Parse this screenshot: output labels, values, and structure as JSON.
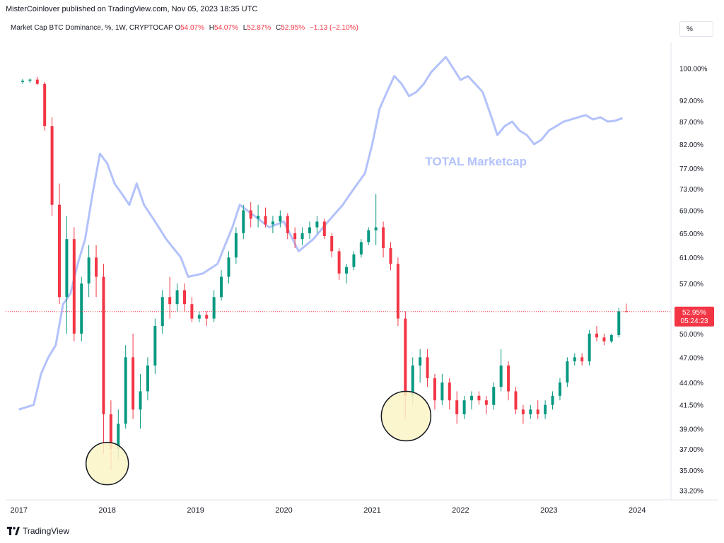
{
  "header": {
    "publisher_line": "MisterCoinlover published on TradingView.com, Nov 05, 2023 18:35 UTC",
    "symbol_title": "Market Cap BTC Dominance, %, 1W, CRYPTOCAP",
    "open_label": "O",
    "open_value": "54.07%",
    "high_label": "H",
    "high_value": "54.07%",
    "low_label": "L",
    "low_value": "52.87%",
    "close_label": "C",
    "close_value": "52.95%",
    "change_value": "−1.13 (−2.10%)",
    "scale_button": "%"
  },
  "footer": {
    "brand": "TradingView"
  },
  "colors": {
    "up": "#089981",
    "down": "#f23645",
    "overlay": "#b3c2fb",
    "annotation_fill": "#fcf5c7",
    "price_line": "#f23645"
  },
  "chart_data": {
    "type": "candlestick",
    "title": "Market Cap BTC Dominance, %, 1W, CRYPTOCAP",
    "interval": "1W",
    "x_tick_labels": [
      "2017",
      "2018",
      "2019",
      "2020",
      "2021",
      "2022",
      "2023",
      "2024"
    ],
    "y_tick_labels": [
      "100.00%",
      "92.00%",
      "87.00%",
      "82.00%",
      "77.00%",
      "73.00%",
      "69.00%",
      "65.00%",
      "61.00%",
      "57.00%",
      "50.00%",
      "47.00%",
      "44.00%",
      "41.50%",
      "39.00%",
      "37.00%",
      "35.00%",
      "33.20%"
    ],
    "ylim": [
      32.5,
      107
    ],
    "y_scale": "log",
    "grid": false,
    "last_price_label": "52.95%",
    "countdown_label": "05:24:23",
    "overlay_series": {
      "label": "TOTAL Marketcap",
      "color": "#b3c2fb",
      "points": [
        [
          "2017-01",
          41.0
        ],
        [
          "2017-03",
          41.5
        ],
        [
          "2017-04",
          45.0
        ],
        [
          "2017-05",
          47.0
        ],
        [
          "2017-06",
          48.5
        ],
        [
          "2017-07",
          54.0
        ],
        [
          "2017-08",
          55.5
        ],
        [
          "2017-09",
          60.0
        ],
        [
          "2017-10",
          64.0
        ],
        [
          "2017-11",
          72.0
        ],
        [
          "2017-12",
          80.0
        ],
        [
          "2018-01",
          78.0
        ],
        [
          "2018-02",
          74.0
        ],
        [
          "2018-03",
          72.0
        ],
        [
          "2018-04",
          70.0
        ],
        [
          "2018-05",
          74.0
        ],
        [
          "2018-06",
          70.0
        ],
        [
          "2018-07",
          68.0
        ],
        [
          "2018-08",
          66.0
        ],
        [
          "2018-09",
          64.0
        ],
        [
          "2018-11",
          61.0
        ],
        [
          "2018-12",
          58.0
        ],
        [
          "2019-02",
          58.5
        ],
        [
          "2019-04",
          60.0
        ],
        [
          "2019-05",
          63.0
        ],
        [
          "2019-06",
          66.0
        ],
        [
          "2019-07",
          70.0
        ],
        [
          "2019-09",
          68.0
        ],
        [
          "2019-11",
          66.0
        ],
        [
          "2020-01",
          67.0
        ],
        [
          "2020-03",
          62.0
        ],
        [
          "2020-05",
          64.0
        ],
        [
          "2020-07",
          67.0
        ],
        [
          "2020-09",
          70.0
        ],
        [
          "2020-10",
          72.0
        ],
        [
          "2020-12",
          76.0
        ],
        [
          "2021-01",
          82.0
        ],
        [
          "2021-02",
          90.0
        ],
        [
          "2021-03",
          94.0
        ],
        [
          "2021-04",
          98.0
        ],
        [
          "2021-05",
          96.0
        ],
        [
          "2021-06",
          93.0
        ],
        [
          "2021-07",
          94.0
        ],
        [
          "2021-08",
          96.0
        ],
        [
          "2021-09",
          99.0
        ],
        [
          "2021-10",
          101.0
        ],
        [
          "2021-11",
          103.0
        ],
        [
          "2021-12",
          100.0
        ],
        [
          "2022-01",
          97.0
        ],
        [
          "2022-02",
          98.0
        ],
        [
          "2022-03",
          96.0
        ],
        [
          "2022-04",
          94.0
        ],
        [
          "2022-05",
          89.0
        ],
        [
          "2022-06",
          84.0
        ],
        [
          "2022-07",
          86.0
        ],
        [
          "2022-08",
          87.0
        ],
        [
          "2022-09",
          85.0
        ],
        [
          "2022-10",
          84.0
        ],
        [
          "2022-11",
          82.0
        ],
        [
          "2022-12",
          83.0
        ],
        [
          "2023-01",
          85.0
        ],
        [
          "2023-02",
          86.0
        ],
        [
          "2023-03",
          87.0
        ],
        [
          "2023-04",
          87.5
        ],
        [
          "2023-05",
          88.0
        ],
        [
          "2023-06",
          88.5
        ],
        [
          "2023-07",
          87.5
        ],
        [
          "2023-08",
          88.0
        ],
        [
          "2023-09",
          87.0
        ],
        [
          "2023-10",
          87.2
        ],
        [
          "2023-11",
          87.8
        ]
      ]
    },
    "candles": [
      [
        "2017-01",
        96.5,
        97.2,
        96.0,
        96.8
      ],
      [
        "2017-02",
        96.8,
        97.4,
        96.3,
        97.1
      ],
      [
        "2017-03",
        97.1,
        97.8,
        95.8,
        96.0
      ],
      [
        "2017-04",
        96.0,
        96.5,
        85.0,
        86.0
      ],
      [
        "2017-05",
        86.0,
        88.0,
        68.0,
        70.0
      ],
      [
        "2017-06",
        70.0,
        74.0,
        54.0,
        55.0
      ],
      [
        "2017-07",
        55.0,
        68.0,
        50.0,
        64.0
      ],
      [
        "2017-08",
        64.0,
        66.0,
        49.0,
        50.0
      ],
      [
        "2017-09",
        50.0,
        58.0,
        49.0,
        57.0
      ],
      [
        "2017-10",
        57.0,
        63.0,
        55.0,
        61.0
      ],
      [
        "2017-11",
        61.0,
        63.0,
        55.0,
        58.0
      ],
      [
        "2017-12",
        58.0,
        60.0,
        36.5,
        40.5
      ],
      [
        "2018-01",
        40.5,
        42.0,
        35.0,
        37.0
      ],
      [
        "2018-02",
        37.0,
        41.0,
        36.0,
        39.5
      ],
      [
        "2018-03",
        39.5,
        48.5,
        39.0,
        47.0
      ],
      [
        "2018-04",
        47.0,
        50.0,
        40.0,
        41.0
      ],
      [
        "2018-05",
        41.0,
        45.0,
        39.0,
        43.0
      ],
      [
        "2018-06",
        43.0,
        47.0,
        42.0,
        46.0
      ],
      [
        "2018-07",
        46.0,
        52.0,
        45.0,
        51.0
      ],
      [
        "2018-08",
        51.0,
        56.0,
        50.0,
        55.0
      ],
      [
        "2018-09",
        55.0,
        58.0,
        52.0,
        54.0
      ],
      [
        "2018-10",
        54.0,
        57.0,
        53.0,
        56.0
      ],
      [
        "2018-11",
        56.0,
        57.0,
        53.0,
        54.0
      ],
      [
        "2018-12",
        54.0,
        55.0,
        51.5,
        52.0
      ],
      [
        "2019-01",
        52.0,
        53.0,
        51.5,
        52.5
      ],
      [
        "2019-02",
        52.5,
        53.0,
        51.0,
        52.0
      ],
      [
        "2019-03",
        52.0,
        56.0,
        51.5,
        55.0
      ],
      [
        "2019-04",
        55.0,
        59.0,
        54.5,
        58.0
      ],
      [
        "2019-05",
        58.0,
        62.0,
        57.0,
        61.0
      ],
      [
        "2019-06",
        61.0,
        66.0,
        60.0,
        65.0
      ],
      [
        "2019-07",
        65.0,
        70.0,
        64.0,
        69.0
      ],
      [
        "2019-08",
        69.0,
        70.5,
        66.0,
        67.5
      ],
      [
        "2019-09",
        67.5,
        70.0,
        66.0,
        68.0
      ],
      [
        "2019-10",
        68.0,
        69.5,
        66.0,
        66.5
      ],
      [
        "2019-11",
        66.5,
        68.0,
        65.0,
        67.0
      ],
      [
        "2019-12",
        67.0,
        69.0,
        66.0,
        68.0
      ],
      [
        "2020-01",
        68.0,
        68.5,
        64.0,
        65.0
      ],
      [
        "2020-02",
        65.0,
        66.0,
        62.5,
        64.0
      ],
      [
        "2020-03",
        64.0,
        66.0,
        63.0,
        65.0
      ],
      [
        "2020-04",
        65.0,
        67.0,
        64.0,
        66.0
      ],
      [
        "2020-05",
        66.0,
        68.0,
        65.0,
        67.0
      ],
      [
        "2020-06",
        67.0,
        67.5,
        64.0,
        64.5
      ],
      [
        "2020-07",
        64.5,
        65.0,
        61.0,
        62.0
      ],
      [
        "2020-08",
        62.0,
        62.5,
        57.5,
        58.5
      ],
      [
        "2020-09",
        58.5,
        60.0,
        57.0,
        59.5
      ],
      [
        "2020-10",
        59.5,
        62.0,
        59.0,
        61.5
      ],
      [
        "2020-11",
        61.5,
        64.0,
        61.0,
        63.5
      ],
      [
        "2020-12",
        63.5,
        66.0,
        63.0,
        65.5
      ],
      [
        "2021-01",
        65.5,
        72.0,
        63.0,
        66.0
      ],
      [
        "2021-02",
        66.0,
        67.0,
        61.0,
        62.5
      ],
      [
        "2021-03",
        62.5,
        63.5,
        59.0,
        60.0
      ],
      [
        "2021-04",
        60.0,
        61.0,
        51.0,
        52.0
      ],
      [
        "2021-05",
        52.0,
        53.0,
        40.0,
        42.5
      ],
      [
        "2021-06",
        42.5,
        47.0,
        41.5,
        46.0
      ],
      [
        "2021-07",
        46.0,
        48.0,
        44.0,
        47.0
      ],
      [
        "2021-08",
        47.0,
        48.0,
        43.5,
        44.5
      ],
      [
        "2021-09",
        44.5,
        45.0,
        41.0,
        42.0
      ],
      [
        "2021-10",
        42.0,
        45.0,
        41.5,
        44.0
      ],
      [
        "2021-11",
        44.0,
        44.5,
        41.0,
        42.0
      ],
      [
        "2021-12",
        42.0,
        43.0,
        39.5,
        40.5
      ],
      [
        "2022-01",
        40.5,
        42.5,
        40.0,
        42.0
      ],
      [
        "2022-02",
        42.0,
        43.0,
        41.0,
        42.5
      ],
      [
        "2022-03",
        42.5,
        43.0,
        41.5,
        42.0
      ],
      [
        "2022-04",
        42.0,
        42.5,
        40.5,
        41.5
      ],
      [
        "2022-05",
        41.5,
        44.0,
        41.0,
        43.5
      ],
      [
        "2022-06",
        43.5,
        48.0,
        43.0,
        46.0
      ],
      [
        "2022-07",
        46.0,
        46.5,
        42.0,
        43.0
      ],
      [
        "2022-08",
        43.0,
        43.5,
        40.5,
        41.0
      ],
      [
        "2022-09",
        41.0,
        41.5,
        39.5,
        40.5
      ],
      [
        "2022-10",
        40.5,
        41.5,
        40.0,
        41.0
      ],
      [
        "2022-11",
        41.0,
        42.0,
        40.0,
        40.5
      ],
      [
        "2022-12",
        40.5,
        42.0,
        40.0,
        41.5
      ],
      [
        "2023-01",
        41.5,
        43.0,
        41.0,
        42.5
      ],
      [
        "2023-02",
        42.5,
        44.5,
        42.0,
        44.0
      ],
      [
        "2023-03",
        44.0,
        47.0,
        43.5,
        46.5
      ],
      [
        "2023-04",
        46.5,
        47.5,
        46.0,
        47.0
      ],
      [
        "2023-05",
        47.0,
        47.5,
        46.0,
        46.5
      ],
      [
        "2023-06",
        46.5,
        50.5,
        46.0,
        50.0
      ],
      [
        "2023-07",
        50.0,
        51.0,
        49.0,
        49.5
      ],
      [
        "2023-08",
        49.5,
        50.0,
        48.5,
        49.0
      ],
      [
        "2023-09",
        49.0,
        50.0,
        48.8,
        49.8
      ],
      [
        "2023-10",
        49.8,
        53.5,
        49.5,
        53.0
      ],
      [
        "2023-11",
        53.0,
        54.07,
        52.87,
        52.95
      ]
    ]
  }
}
